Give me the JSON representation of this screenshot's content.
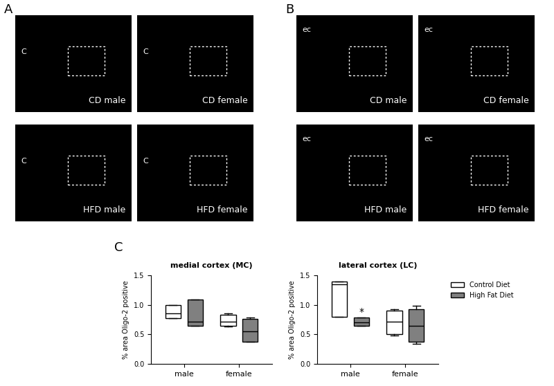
{
  "panels": [
    {
      "letter": "A",
      "images": [
        {
          "label": "CD male",
          "region": "C"
        },
        {
          "label": "CD female",
          "region": "C"
        },
        {
          "label": "HFD male",
          "region": "C"
        },
        {
          "label": "HFD female",
          "region": "C"
        }
      ]
    },
    {
      "letter": "B",
      "images": [
        {
          "label": "CD male",
          "region": "ec"
        },
        {
          "label": "CD female",
          "region": "ec"
        },
        {
          "label": "HFD male",
          "region": "ec"
        },
        {
          "label": "HFD female",
          "region": "ec"
        }
      ]
    }
  ],
  "chart_panel": "C",
  "chart_data": [
    {
      "type": "box",
      "title": "medial cortex (MC)",
      "y_label": "% area Oligo-2 positive",
      "categories": [
        "male",
        "female"
      ],
      "series": [
        {
          "name": "Control Diet",
          "color": "#ffffff",
          "boxes": [
            {
              "min": 0.77,
              "q1": 0.77,
              "median": 0.86,
              "q3": 1.0,
              "max": 1.0
            },
            {
              "min": 0.63,
              "q1": 0.64,
              "median": 0.72,
              "q3": 0.83,
              "max": 0.86
            }
          ]
        },
        {
          "name": "High Fat Diet",
          "color": "#808080",
          "boxes": [
            {
              "min": 0.65,
              "q1": 0.65,
              "median": 0.71,
              "q3": 1.09,
              "max": 1.09
            },
            {
              "min": 0.37,
              "q1": 0.38,
              "median": 0.55,
              "q3": 0.76,
              "max": 0.79
            }
          ]
        }
      ],
      "ylim": [
        0,
        1.5
      ],
      "yticks": [
        {
          "value": 0,
          "label": "0.0"
        },
        0.5,
        {
          "value": 1,
          "label": "1.0"
        },
        1.5
      ]
    },
    {
      "type": "box",
      "title": "lateral cortex (LC)",
      "y_label": "% area Oligo-2 positive",
      "categories": [
        "male",
        "female"
      ],
      "series": [
        {
          "name": "Control Diet",
          "color": "#ffffff",
          "boxes": [
            {
              "min": 0.8,
              "q1": 0.8,
              "median": 1.35,
              "q3": 1.4,
              "max": 1.4
            },
            {
              "min": 0.48,
              "q1": 0.5,
              "median": 0.72,
              "q3": 0.9,
              "max": 0.92
            }
          ]
        },
        {
          "name": "High Fat Diet",
          "color": "#808080",
          "boxes": [
            {
              "min": 0.64,
              "q1": 0.64,
              "median": 0.7,
              "q3": 0.78,
              "max": 0.78
            },
            {
              "min": 0.34,
              "q1": 0.37,
              "median": 0.64,
              "q3": 0.93,
              "max": 0.98
            }
          ]
        }
      ],
      "ylim": [
        0,
        1.5
      ],
      "yticks": [
        {
          "value": 0,
          "label": "0.0"
        },
        0.5,
        {
          "value": 1,
          "label": "1.0"
        },
        1.5
      ],
      "legend": "upper left",
      "annotations": [
        {
          "text": "*",
          "category": "male",
          "series": "High Fat Diet",
          "y": 0.8
        }
      ]
    }
  ]
}
